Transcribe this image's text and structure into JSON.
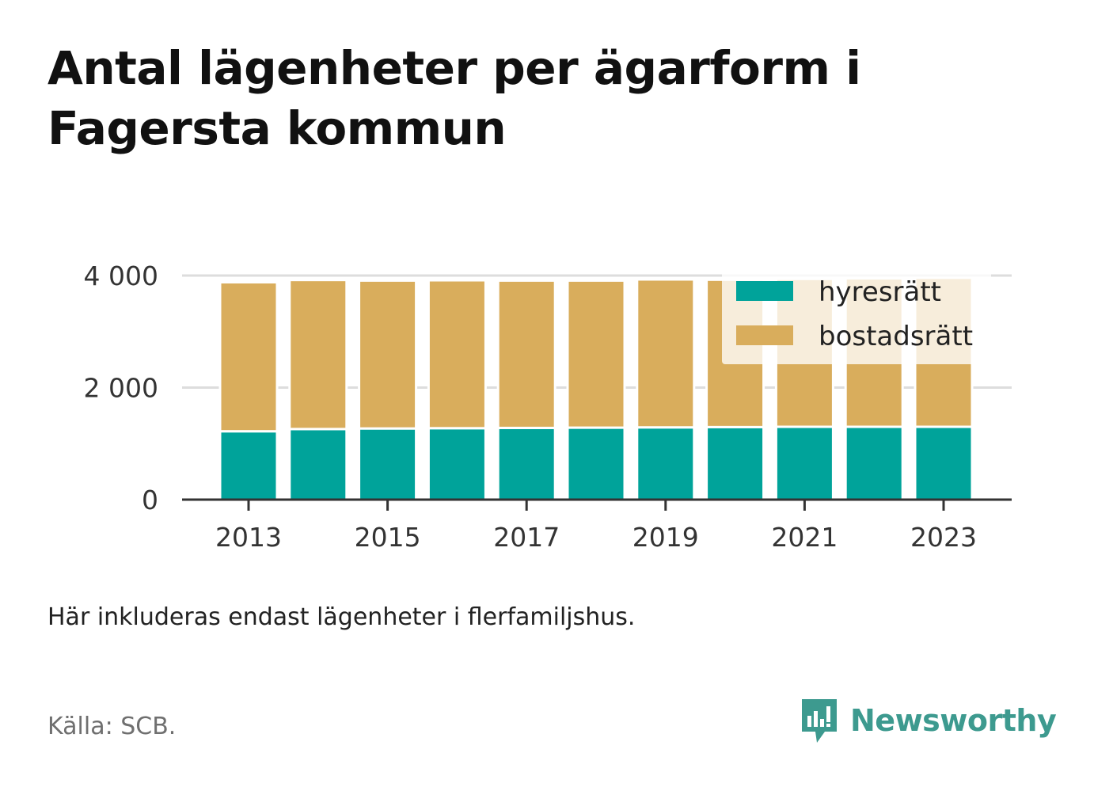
{
  "title": "Antal lägenheter per ägarform i Fagersta kommun",
  "note": "Här inkluderas endast lägenheter i flerfamiljshus.",
  "source": "Källa: SCB.",
  "brand": {
    "name": "Newsworthy",
    "icon": "newsworthy-logo-icon",
    "color": "#3d9a8f"
  },
  "chart_data": {
    "type": "bar",
    "stacked": true,
    "categories": [
      2013,
      2014,
      2015,
      2016,
      2017,
      2018,
      2019,
      2020,
      2021,
      2022,
      2023
    ],
    "series": [
      {
        "name": "hyresrätt",
        "color": "#00a39a",
        "values": [
          1220,
          1260,
          1270,
          1275,
          1280,
          1285,
          1290,
          1295,
          1300,
          1300,
          1300
        ]
      },
      {
        "name": "bostadsrätt",
        "color": "#d9ad5c",
        "values": [
          2660,
          2660,
          2640,
          2640,
          2630,
          2625,
          2640,
          2630,
          2640,
          2650,
          2660
        ]
      }
    ],
    "xticks": [
      "2013",
      "2015",
      "2017",
      "2019",
      "2021",
      "2023"
    ],
    "yticks": [
      {
        "value": 0,
        "label": "0"
      },
      {
        "value": 2000,
        "label": "2 000"
      },
      {
        "value": 4000,
        "label": "4 000"
      }
    ],
    "ylim": [
      0,
      4000
    ],
    "grid": true,
    "legend_position": "top-right",
    "xlabel": "",
    "ylabel": ""
  }
}
